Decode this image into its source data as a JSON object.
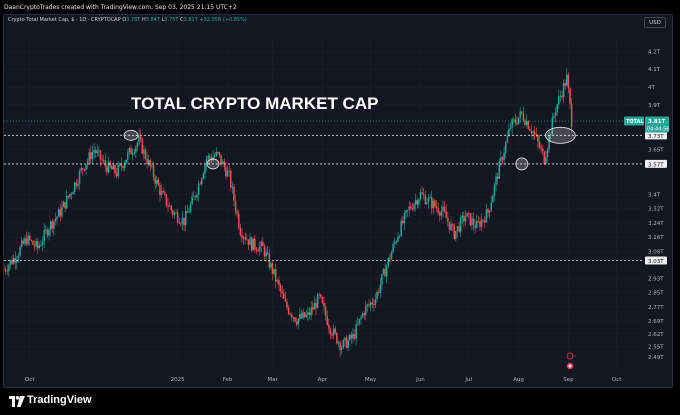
{
  "header": {
    "credit": "DaanCryptoTrades created with TradingView.com, Sep 03, 2025 21:15 UTC+2"
  },
  "legend": {
    "symbol": "Crypto Total Market Cap, $ · 1D · CRYPTOCAP",
    "open_label": "O",
    "open": "3.78T",
    "high_label": "H",
    "high": "3.84T",
    "low_label": "L",
    "low": "3.75T",
    "close_label": "C",
    "close": "3.81T",
    "change": "+32.05B (+0.85%)"
  },
  "currency_button": "USD",
  "chart_data": {
    "type": "candlestick",
    "title": "TOTAL CRYPTO MARKET CAP",
    "y_axis_ticks": [
      "4.2T",
      "4.1T",
      "4T",
      "3.9T",
      "3.81T",
      "3.73T",
      "3.65T",
      "3.57T",
      "3.4T",
      "3.32T",
      "3.24T",
      "3.16T",
      "3.08T",
      "3.03T",
      "2.93T",
      "2.85T",
      "2.77T",
      "2.69T",
      "2.62T",
      "2.55T",
      "2.49T"
    ],
    "x_axis_ticks": [
      "Oct",
      "2025",
      "Feb",
      "Mar",
      "Apr",
      "May",
      "Jun",
      "Jul",
      "Aug",
      "Sep",
      "Oct"
    ],
    "ylim": [
      2.49,
      4.28
    ],
    "price_tag": {
      "label": "TOTAL",
      "value": "3.81T",
      "countdown": "04:44:56"
    },
    "level_lines": [
      {
        "value": 3.73,
        "label": "3.73T",
        "style": "dashed"
      },
      {
        "value": 3.57,
        "label": "3.57T",
        "style": "dashed"
      },
      {
        "value": 3.03,
        "label": "3.03T",
        "style": "dashed"
      }
    ],
    "annotations": [
      "circle near Dec 2024 high",
      "circle near Jan 2025 high",
      "circle at Aug 2025 low",
      "circle at late Aug 2025"
    ],
    "series": [
      {
        "date_range": [
          "2024-09-15",
          "2025-09-03"
        ],
        "interval": "1D",
        "close_path": [
          [
            "2024-09-15",
            2.98
          ],
          [
            "2024-09-22",
            3.05
          ],
          [
            "2024-09-29",
            3.15
          ],
          [
            "2024-10-06",
            3.1
          ],
          [
            "2024-10-13",
            3.22
          ],
          [
            "2024-10-20",
            3.3
          ],
          [
            "2024-10-27",
            3.42
          ],
          [
            "2024-11-03",
            3.55
          ],
          [
            "2024-11-10",
            3.65
          ],
          [
            "2024-11-17",
            3.56
          ],
          [
            "2024-11-24",
            3.52
          ],
          [
            "2024-12-01",
            3.62
          ],
          [
            "2024-12-08",
            3.7
          ],
          [
            "2024-12-15",
            3.55
          ],
          [
            "2024-12-22",
            3.4
          ],
          [
            "2024-12-29",
            3.3
          ],
          [
            "2025-01-05",
            3.25
          ],
          [
            "2025-01-12",
            3.4
          ],
          [
            "2025-01-19",
            3.6
          ],
          [
            "2025-01-26",
            3.62
          ],
          [
            "2025-02-02",
            3.5
          ],
          [
            "2025-02-09",
            3.2
          ],
          [
            "2025-02-16",
            3.12
          ],
          [
            "2025-02-23",
            3.1
          ],
          [
            "2025-03-02",
            2.95
          ],
          [
            "2025-03-09",
            2.78
          ],
          [
            "2025-03-16",
            2.7
          ],
          [
            "2025-03-23",
            2.72
          ],
          [
            "2025-03-30",
            2.82
          ],
          [
            "2025-04-06",
            2.65
          ],
          [
            "2025-04-13",
            2.55
          ],
          [
            "2025-04-20",
            2.6
          ],
          [
            "2025-04-27",
            2.75
          ],
          [
            "2025-05-04",
            2.82
          ],
          [
            "2025-05-11",
            3.0
          ],
          [
            "2025-05-18",
            3.18
          ],
          [
            "2025-05-25",
            3.32
          ],
          [
            "2025-06-01",
            3.4
          ],
          [
            "2025-06-08",
            3.35
          ],
          [
            "2025-06-15",
            3.3
          ],
          [
            "2025-06-22",
            3.18
          ],
          [
            "2025-06-29",
            3.28
          ],
          [
            "2025-07-06",
            3.22
          ],
          [
            "2025-07-13",
            3.3
          ],
          [
            "2025-07-20",
            3.55
          ],
          [
            "2025-07-27",
            3.78
          ],
          [
            "2025-08-03",
            3.85
          ],
          [
            "2025-08-10",
            3.75
          ],
          [
            "2025-08-17",
            3.6
          ],
          [
            "2025-08-24",
            3.88
          ],
          [
            "2025-08-31",
            4.05
          ],
          [
            "2025-09-03",
            3.81
          ]
        ]
      }
    ],
    "colors": {
      "up": "#26a69a",
      "down": "#ef5350",
      "background": "#131722",
      "grid": "#1c2030",
      "text": "#b2b5be",
      "price_tag": "#26a69a"
    }
  },
  "branding": {
    "logo_text": "TradingView"
  }
}
